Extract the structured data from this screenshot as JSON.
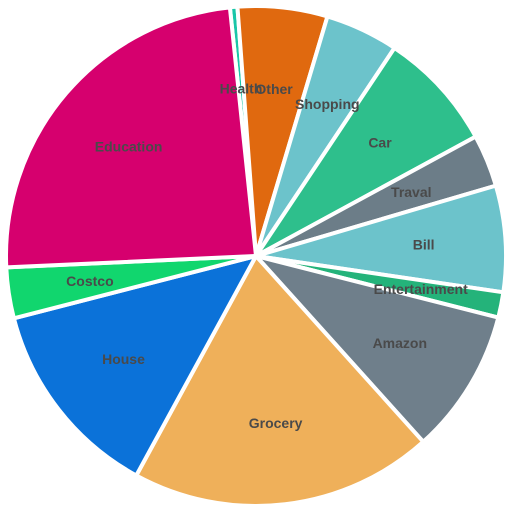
{
  "chart_data": {
    "type": "pie",
    "title": "",
    "start_angle_deg": -6,
    "slices": [
      {
        "label": "Health",
        "value": 0.5,
        "color": "#1ac6a8"
      },
      {
        "label": "Other",
        "value": 6.0,
        "color": "#e0690f"
      },
      {
        "label": "Shopping",
        "value": 4.9,
        "color": "#6cc3cb"
      },
      {
        "label": "Car",
        "value": 8.0,
        "color": "#2ebf8c"
      },
      {
        "label": "Traval",
        "value": 3.5,
        "color": "#6c7d88"
      },
      {
        "label": "Bill",
        "value": 7.1,
        "color": "#6cc3cb"
      },
      {
        "label": "Entertainment",
        "value": 1.7,
        "color": "#24b37a"
      },
      {
        "label": "Amazon",
        "value": 9.7,
        "color": "#6f7f8b"
      },
      {
        "label": "Grocery",
        "value": 20.3,
        "color": "#efb05a"
      },
      {
        "label": "House",
        "value": 13.5,
        "color": "#0b72d9"
      },
      {
        "label": "Costco",
        "value": 3.4,
        "color": "#11d66e"
      },
      {
        "label": "Education",
        "value": 24.9,
        "color": "#d6006e"
      }
    ]
  }
}
